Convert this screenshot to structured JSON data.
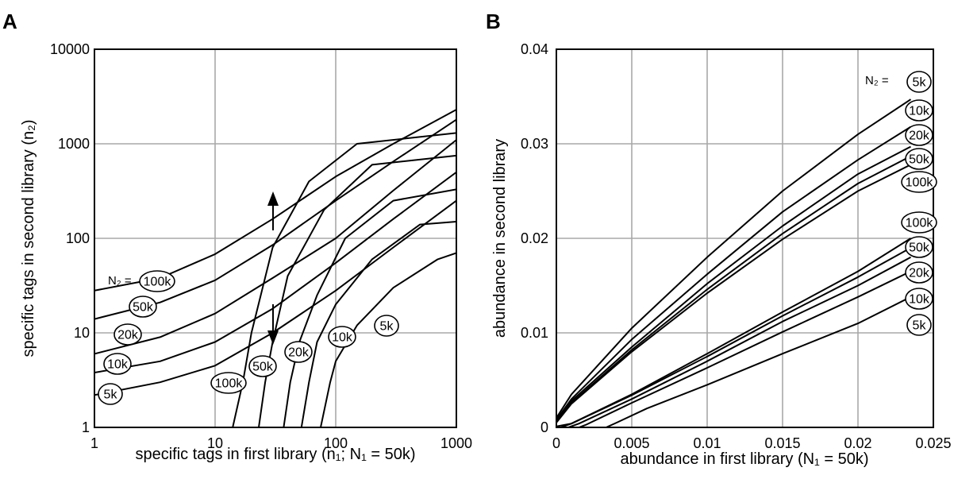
{
  "chart_data": [
    {
      "panel": "A",
      "type": "line",
      "xlabel": "specific tags in first library (n₁; N₁ = 50k)",
      "ylabel": "specific tags in second library (n₂)",
      "xscale": "log",
      "yscale": "log",
      "xlim": [
        1,
        1000
      ],
      "ylim": [
        1,
        10000
      ],
      "xticks": [
        "1",
        "10",
        "100",
        "1000"
      ],
      "yticks": [
        "1",
        "10",
        "100",
        "1000",
        "10000"
      ],
      "grid": true,
      "annotation": "N₂ =",
      "upper_group": [
        {
          "label": "100k",
          "x": [
            1,
            3.5,
            10,
            30,
            100,
            300,
            1000
          ],
          "y": [
            28,
            38,
            68,
            160,
            450,
            1000,
            2300
          ]
        },
        {
          "label": "50k",
          "x": [
            1,
            3.5,
            10,
            30,
            100,
            300,
            1000
          ],
          "y": [
            14,
            21,
            36,
            85,
            250,
            650,
            1800
          ]
        },
        {
          "label": "20k",
          "x": [
            1,
            3.5,
            10,
            30,
            100,
            300,
            1000
          ],
          "y": [
            6,
            9,
            16,
            38,
            100,
            320,
            1100
          ]
        },
        {
          "label": "10k",
          "x": [
            1,
            3.5,
            10,
            30,
            100,
            300,
            1000
          ],
          "y": [
            3.8,
            5,
            8,
            18,
            55,
            160,
            500
          ]
        },
        {
          "label": "5k",
          "x": [
            1,
            3.5,
            10,
            30,
            100,
            300,
            1000
          ],
          "y": [
            2.2,
            3,
            4.5,
            10,
            28,
            80,
            250
          ]
        }
      ],
      "lower_group": [
        {
          "label": "100k",
          "x": [
            14,
            17,
            20,
            30,
            60,
            150,
            1000
          ],
          "y": [
            1,
            3,
            10,
            80,
            400,
            1000,
            1300
          ]
        },
        {
          "label": "50k",
          "x": [
            23,
            26,
            30,
            40,
            80,
            200,
            1000
          ],
          "y": [
            1,
            3,
            8,
            40,
            200,
            600,
            750
          ]
        },
        {
          "label": "20k",
          "x": [
            37,
            42,
            50,
            70,
            120,
            300,
            1000
          ],
          "y": [
            1,
            3,
            8,
            25,
            100,
            250,
            330
          ]
        },
        {
          "label": "10k",
          "x": [
            52,
            60,
            70,
            100,
            200,
            500,
            1000
          ],
          "y": [
            1,
            3,
            8,
            20,
            60,
            140,
            150
          ]
        },
        {
          "label": "5k",
          "x": [
            75,
            90,
            100,
            150,
            300,
            700,
            1000
          ],
          "y": [
            1,
            3,
            5,
            12,
            30,
            60,
            70
          ]
        }
      ]
    },
    {
      "panel": "B",
      "type": "line",
      "xlabel": "abundance in first library (N₁ = 50k)",
      "ylabel": "abundance in second library",
      "xlim": [
        0,
        0.025
      ],
      "ylim": [
        0,
        0.04
      ],
      "xticks": [
        "0",
        "0.005",
        "0.01",
        "0.015",
        "0.02",
        "0.025"
      ],
      "yticks": [
        "0",
        "0.01",
        "0.02",
        "0.03",
        "0.04"
      ],
      "grid": true,
      "annotation": "N₂ =",
      "upper_group": [
        {
          "label": "5k",
          "x": [
            0,
            0.001,
            0.005,
            0.01,
            0.015,
            0.02,
            0.0235
          ],
          "y": [
            0.001,
            0.0035,
            0.0105,
            0.018,
            0.025,
            0.031,
            0.0347
          ]
        },
        {
          "label": "10k",
          "x": [
            0,
            0.001,
            0.005,
            0.01,
            0.015,
            0.02,
            0.0235
          ],
          "y": [
            0.0008,
            0.003,
            0.0093,
            0.0162,
            0.0228,
            0.0283,
            0.0318
          ]
        },
        {
          "label": "20k",
          "x": [
            0,
            0.001,
            0.005,
            0.01,
            0.015,
            0.02,
            0.0235
          ],
          "y": [
            0.0007,
            0.0028,
            0.0085,
            0.0152,
            0.0213,
            0.0268,
            0.0297
          ]
        },
        {
          "label": "50k",
          "x": [
            0,
            0.001,
            0.005,
            0.01,
            0.015,
            0.02,
            0.0235
          ],
          "y": [
            0.0006,
            0.0026,
            0.0082,
            0.0146,
            0.0205,
            0.0258,
            0.0287
          ]
        },
        {
          "label": "100k",
          "x": [
            0,
            0.001,
            0.005,
            0.01,
            0.015,
            0.02,
            0.0235
          ],
          "y": [
            0.0005,
            0.0025,
            0.008,
            0.0142,
            0.0199,
            0.025,
            0.0278
          ]
        }
      ],
      "lower_group": [
        {
          "label": "100k",
          "x": [
            0,
            0.001,
            0.005,
            0.01,
            0.015,
            0.02,
            0.0235
          ],
          "y": [
            0.0001,
            0.0004,
            0.0035,
            0.0078,
            0.0122,
            0.0165,
            0.02
          ]
        },
        {
          "label": "50k",
          "x": [
            0.0003,
            0.001,
            0.005,
            0.01,
            0.015,
            0.02,
            0.0235
          ],
          "y": [
            0,
            0.0004,
            0.0034,
            0.0075,
            0.0118,
            0.0159,
            0.019
          ]
        },
        {
          "label": "20k",
          "x": [
            0.0008,
            0.0015,
            0.005,
            0.01,
            0.015,
            0.02,
            0.0235
          ],
          "y": [
            0,
            0.0004,
            0.003,
            0.007,
            0.0112,
            0.015,
            0.018
          ]
        },
        {
          "label": "10k",
          "x": [
            0.0015,
            0.002,
            0.005,
            0.01,
            0.015,
            0.02,
            0.0235
          ],
          "y": [
            0,
            0.0003,
            0.0026,
            0.0063,
            0.0101,
            0.0138,
            0.0165
          ]
        },
        {
          "label": "5k",
          "x": [
            0.0033,
            0.004,
            0.006,
            0.01,
            0.015,
            0.02,
            0.0235
          ],
          "y": [
            0,
            0.0005,
            0.002,
            0.0045,
            0.0078,
            0.011,
            0.0138
          ]
        }
      ]
    }
  ]
}
